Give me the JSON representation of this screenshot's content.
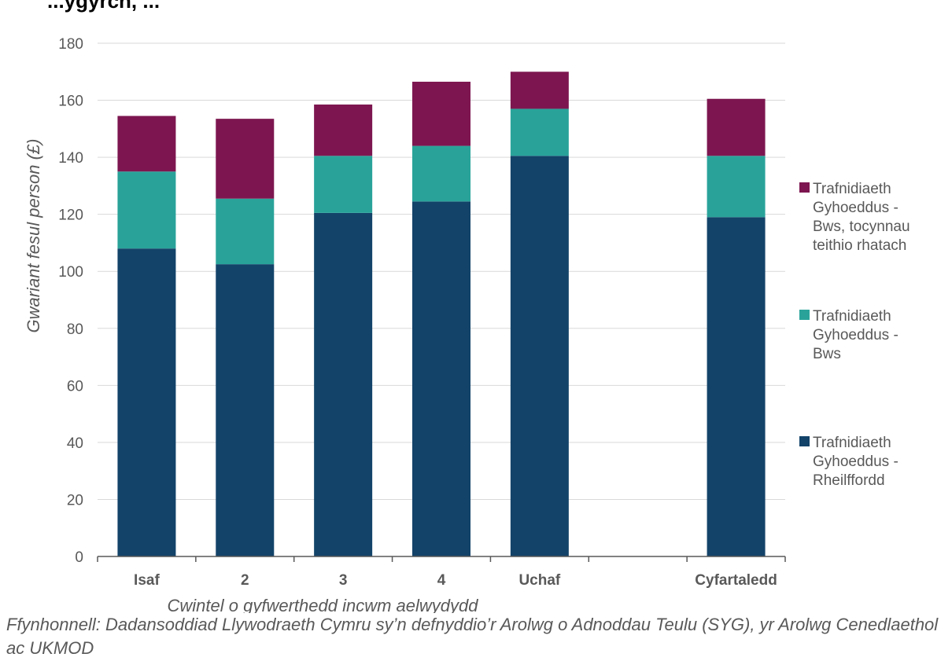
{
  "page": {
    "title_fragment": "...ygyrch, ...",
    "source": "Ffynhonnell: Dadansoddiad Llywodraeth Cymru sy’n defnyddio’r Arolwg o Adnoddau Teulu (SYG), yr Arolwg Cenedlaethol ac UKMOD"
  },
  "chart_data": {
    "type": "bar",
    "stacked": true,
    "title": "",
    "xlabel": "Cwintel o gyfwerthedd incwm aelwydydd",
    "ylabel": "Gwariant fesul person (£)",
    "ylim": [
      0,
      180
    ],
    "yticks": [
      0,
      20,
      40,
      60,
      80,
      100,
      120,
      140,
      160,
      180
    ],
    "grid": true,
    "legend_position": "right",
    "categories": [
      "Isaf",
      "2",
      "3",
      "4",
      "Uchaf",
      "",
      "Cyfartaledd"
    ],
    "series": [
      {
        "name": "Trafnidiaeth Gyhoeddus - Rheilffordd",
        "legend_lines": [
          "Trafnidiaeth",
          "Gyhoeddus -",
          "Rheilffordd"
        ],
        "color": "#134369",
        "values": [
          108,
          102.5,
          120.5,
          124.5,
          140.5,
          null,
          119
        ]
      },
      {
        "name": "Trafnidiaeth Gyhoeddus - Bws",
        "legend_lines": [
          "Trafnidiaeth",
          "Gyhoeddus -",
          "Bws"
        ],
        "color": "#29A39A",
        "values": [
          27,
          23,
          20,
          19.5,
          16.5,
          null,
          21.5
        ]
      },
      {
        "name": "Trafnidiaeth Gyhoeddus - Bws, tocynnau teithio rhatach",
        "legend_lines": [
          "Trafnidiaeth",
          "Gyhoeddus -",
          "Bws, tocynnau",
          "teithio rhatach"
        ],
        "color": "#7D1650",
        "values": [
          19.5,
          28,
          18,
          22.5,
          13,
          null,
          20
        ]
      }
    ]
  }
}
